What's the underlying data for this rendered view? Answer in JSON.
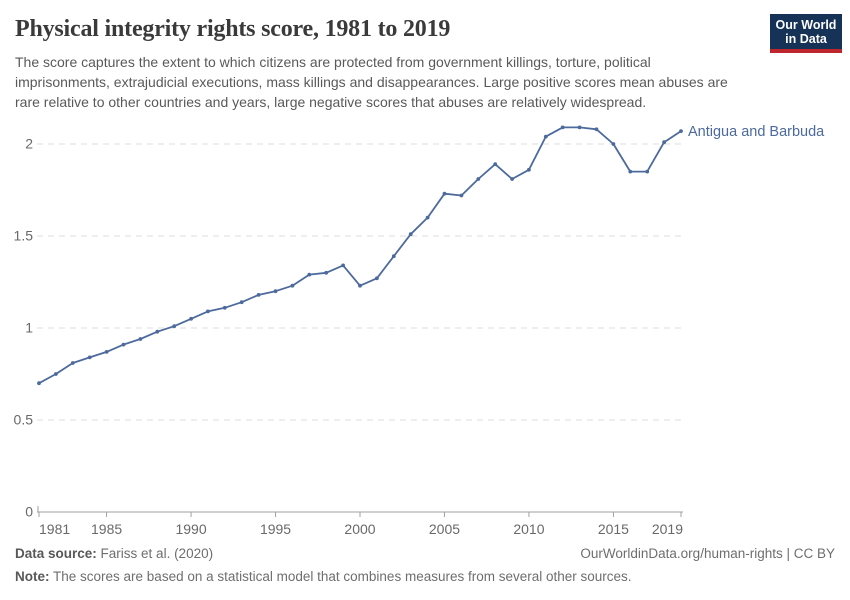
{
  "header": {
    "title": "Physical integrity rights score, 1981 to 2019",
    "subtitle": "The score captures the extent to which citizens are protected from government killings, torture, political imprisonments, extrajudicial executions, mass killings and disappearances. Large positive scores mean abuses are rare relative to other countries and years, large negative scores that abuses are relatively widespread."
  },
  "logo": {
    "line1": "Our World",
    "line2": "in Data",
    "bg_color": "#163256",
    "accent_color": "#bc262c"
  },
  "chart_data": {
    "type": "line",
    "title": "Physical integrity rights score, 1981 to 2019",
    "xlabel": "",
    "ylabel": "",
    "grid": "horizontal-dashed",
    "legend_position": "end-of-line-label",
    "x": [
      1981,
      1982,
      1983,
      1984,
      1985,
      1986,
      1987,
      1988,
      1989,
      1990,
      1991,
      1992,
      1993,
      1994,
      1995,
      1996,
      1997,
      1998,
      1999,
      2000,
      2001,
      2002,
      2003,
      2004,
      2005,
      2006,
      2007,
      2008,
      2009,
      2010,
      2011,
      2012,
      2013,
      2014,
      2015,
      2016,
      2017,
      2018,
      2019
    ],
    "series": [
      {
        "name": "Antigua and Barbuda",
        "color": "#4c6a9c",
        "values": [
          0.7,
          0.75,
          0.81,
          0.84,
          0.87,
          0.91,
          0.94,
          0.98,
          1.01,
          1.05,
          1.09,
          1.11,
          1.14,
          1.18,
          1.2,
          1.23,
          1.29,
          1.3,
          1.34,
          1.23,
          1.27,
          1.39,
          1.51,
          1.6,
          1.73,
          1.72,
          1.81,
          1.89,
          1.81,
          1.86,
          2.04,
          2.09,
          2.09,
          2.08,
          2.0,
          1.85,
          1.85,
          2.01,
          2.07
        ]
      }
    ],
    "x_ticks": [
      1981,
      1985,
      1990,
      1995,
      2000,
      2005,
      2010,
      2015,
      2019
    ],
    "y_ticks": [
      0,
      0.5,
      1,
      1.5,
      2
    ],
    "ylim": [
      0,
      2.2
    ],
    "xlim": [
      1981,
      2019
    ],
    "axis_color": "#a1a1a1",
    "gridline_color": "#dedede"
  },
  "footer": {
    "datasource_label": "Data source:",
    "datasource_value": "Fariss et al. (2020)",
    "credit": "OurWorldinData.org/human-rights | CC BY",
    "note_label": "Note:",
    "note_text": "The scores are based on a statistical model that combines measures from several other sources."
  }
}
